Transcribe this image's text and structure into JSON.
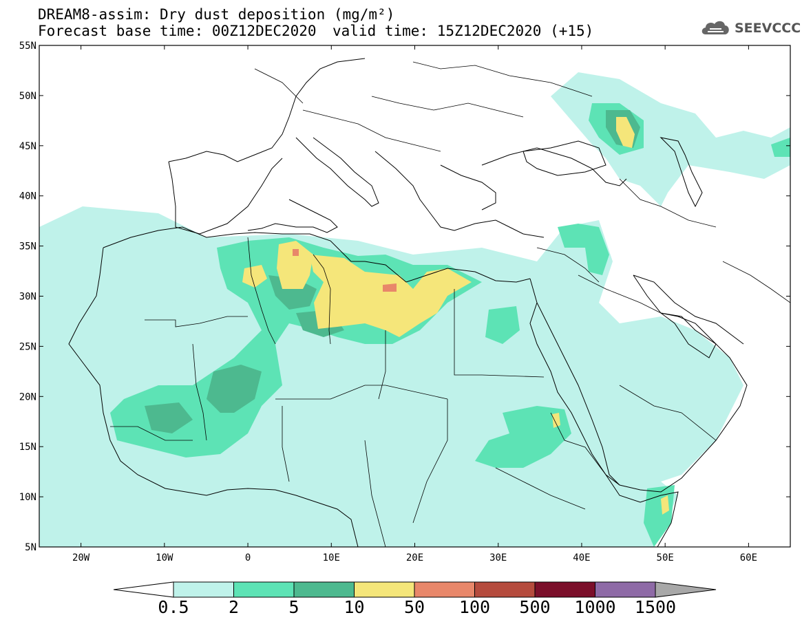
{
  "header": {
    "title_line1": "DREAM8-assim: Dry dust deposition (mg/m²)",
    "title_line2_left": "Forecast base time: 00Z12DEC2020",
    "title_line2_right": "valid time: 15Z12DEC2020 (+15)"
  },
  "logo": {
    "text": "SEEVCCC",
    "icon": "cloud-icon"
  },
  "map": {
    "projection": "lat-lon",
    "lon_range": [
      -25,
      65
    ],
    "lat_range": [
      5,
      55
    ],
    "lon_ticks": [
      {
        "value": -20,
        "label": "20W"
      },
      {
        "value": -10,
        "label": "10W"
      },
      {
        "value": 0,
        "label": "0"
      },
      {
        "value": 10,
        "label": "10E"
      },
      {
        "value": 20,
        "label": "20E"
      },
      {
        "value": 30,
        "label": "30E"
      },
      {
        "value": 40,
        "label": "40E"
      },
      {
        "value": 50,
        "label": "50E"
      },
      {
        "value": 60,
        "label": "60E"
      }
    ],
    "lat_ticks": [
      {
        "value": 55,
        "label": "55N"
      },
      {
        "value": 50,
        "label": "50N"
      },
      {
        "value": 45,
        "label": "45N"
      },
      {
        "value": 40,
        "label": "40N"
      },
      {
        "value": 35,
        "label": "35N"
      },
      {
        "value": 30,
        "label": "30N"
      },
      {
        "value": 25,
        "label": "25N"
      },
      {
        "value": 20,
        "label": "20N"
      },
      {
        "value": 15,
        "label": "15N"
      },
      {
        "value": 10,
        "label": "10N"
      },
      {
        "value": 5,
        "label": "5N"
      }
    ]
  },
  "colorbar": {
    "labels": [
      "0.5",
      "2",
      "5",
      "10",
      "50",
      "100",
      "500",
      "1000",
      "1500"
    ],
    "colors": [
      "#bff2ea",
      "#5de3b5",
      "#4db98f",
      "#f5e67a",
      "#e8876a",
      "#b54b3d",
      "#7b0f2a",
      "#8e6aa6",
      "#a8a8a8"
    ],
    "lower_extend_color": "#ffffff",
    "upper_extend_color": "#a8a8a8"
  },
  "fields": {
    "levels": {
      "l1": "#bff2ea",
      "l2": "#5de3b5",
      "l3": "#4db98f",
      "l4": "#f5e67a",
      "l5": "#e8876a"
    }
  }
}
